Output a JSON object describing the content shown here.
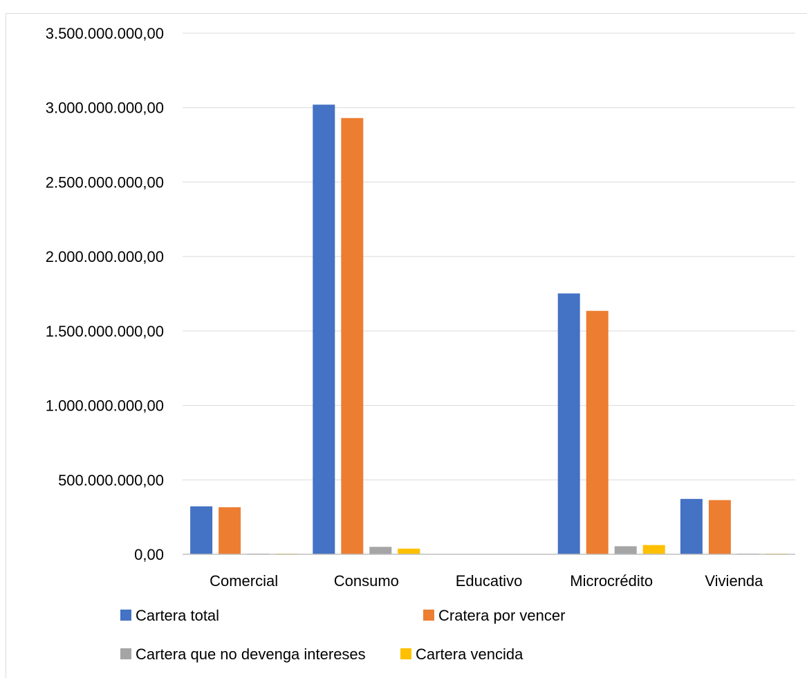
{
  "chart_data": {
    "type": "bar",
    "title": "",
    "xlabel": "",
    "ylabel": "",
    "ylim": [
      0,
      3500000000
    ],
    "y_ticks": [
      0,
      500000000,
      1000000000,
      1500000000,
      2000000000,
      2500000000,
      3000000000,
      3500000000
    ],
    "y_tick_labels": [
      "0,00",
      "500.000.000,00",
      "1.000.000.000,00",
      "1.500.000.000,00",
      "2.000.000.000,00",
      "2.500.000.000,00",
      "3.000.000.000,00",
      "3.500.000.000,00"
    ],
    "grid": true,
    "legend_position": "bottom",
    "categories": [
      "Comercial",
      "Consumo",
      "Educativo",
      "Microcrédito",
      "Vivienda"
    ],
    "series": [
      {
        "name": "Cartera total",
        "color": "#4472C4",
        "values": [
          322000000,
          3020000000,
          0,
          1752000000,
          372000000
        ]
      },
      {
        "name": "Cratera por vencer",
        "color": "#ED7D31",
        "values": [
          316000000,
          2930000000,
          0,
          1635000000,
          364000000
        ]
      },
      {
        "name": "Cartera que no devenga intereses",
        "color": "#A5A5A5",
        "values": [
          3000000,
          50000000,
          0,
          54000000,
          3000000
        ]
      },
      {
        "name": "Cartera vencida",
        "color": "#FFC000",
        "values": [
          2000000,
          38000000,
          0,
          62000000,
          3000000
        ]
      }
    ]
  }
}
